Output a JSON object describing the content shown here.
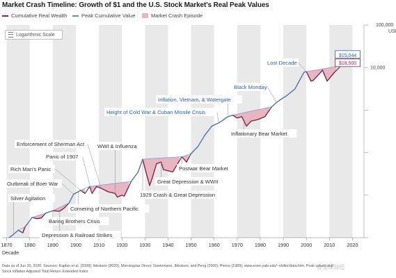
{
  "title": "Market Crash Timeline: Growth of $1 and the U.S. Stock Market's Real Peak Values",
  "legend": {
    "cumulative": "Cumulative Real Wealth",
    "peak": "Peak Cumulative Value",
    "crash": "Market Crash Episode"
  },
  "log_button": "Logarithmic Scale",
  "colors": {
    "wealth": "#2f4f8f",
    "peak": "#5b8fd6",
    "crash_fill": "#e6b6c3",
    "crash_line": "#9b1d3a",
    "decade_band": "#e9e9e9",
    "label_red": "#a41d3d",
    "label_blue": "#2a64b8"
  },
  "footer": {
    "line1": "Data as of Jun 30, 2020. Sources: Kaplan et al. (2009); Ibbotson (2020); Morningstar Direct; Goetzmann, Ibbotson, and Peng (2000); Pierce (1983); www.econ.yale.edu/~shiller/data.htm. Peak values and",
    "line2": "Stock Inflation Adjusted Total Return Extended Index."
  },
  "watermark": "@雪球财经",
  "chart_data": {
    "type": "line",
    "title": "Market Crash Timeline: Growth of $1 and the U.S. Stock Market's Real Peak Values",
    "xlabel": "Decade",
    "ylabel": "USD",
    "y_scale": "log",
    "xlim": [
      1868,
      2025
    ],
    "ylim": [
      1,
      100000
    ],
    "x_ticks": [
      "1870",
      "1880",
      "1890",
      "1900",
      "1910",
      "1920",
      "1930",
      "1940",
      "1950",
      "1960",
      "1970",
      "1980",
      "1990",
      "2000",
      "2010",
      "2020"
    ],
    "y_ticks": [
      "1",
      "10",
      "100",
      "1,000",
      "10,000",
      "100,000 USD"
    ],
    "y_ticks_shown": [
      "10,000",
      "100,000 USD"
    ],
    "grid": false,
    "decade_bands": true,
    "legend_position": "top-left",
    "series": [
      {
        "name": "Cumulative Real Wealth",
        "x": [
          1871,
          1873,
          1875,
          1877,
          1878,
          1880,
          1881,
          1883,
          1885,
          1887,
          1890,
          1893,
          1895,
          1897,
          1899,
          1901,
          1902,
          1904,
          1906,
          1907,
          1909,
          1911,
          1914,
          1917,
          1918,
          1920,
          1921,
          1924,
          1927,
          1929,
          1930,
          1932,
          1933,
          1935,
          1937,
          1938,
          1942,
          1946,
          1948,
          1950,
          1953,
          1956,
          1959,
          1962,
          1966,
          1968,
          1970,
          1972,
          1974,
          1976,
          1979,
          1982,
          1985,
          1987,
          1989,
          1991,
          1995,
          1999,
          2000,
          2002,
          2003,
          2006,
          2007,
          2009,
          2012,
          2015,
          2018,
          2019,
          2020,
          2020.5
        ],
        "values": [
          1,
          1.2,
          1.5,
          1.3,
          1.8,
          2.5,
          3,
          2.8,
          2.9,
          3.8,
          4.3,
          4.2,
          5,
          6.5,
          10.5,
          12,
          13,
          11,
          16,
          11,
          16,
          14.5,
          12,
          11,
          9,
          10,
          9.5,
          21,
          35,
          70,
          42,
          17,
          24,
          55,
          60,
          40,
          35,
          80,
          60,
          95,
          140,
          260,
          420,
          500,
          700,
          760,
          650,
          700,
          420,
          550,
          600,
          700,
          1200,
          1500,
          1800,
          2100,
          3100,
          7800,
          8000,
          4800,
          5000,
          7500,
          8700,
          4800,
          7500,
          11000,
          15044,
          13000,
          13500,
          18500
        ]
      },
      {
        "name": "Peak Cumulative Value",
        "x": [
          1871,
          1873,
          1875,
          1878,
          1880,
          1881,
          1887,
          1890,
          1897,
          1899,
          1901,
          1902,
          1906,
          1924,
          1927,
          1929,
          1946,
          1950,
          1953,
          1956,
          1959,
          1962,
          1966,
          1968,
          1985,
          1987,
          1989,
          1991,
          1995,
          1999,
          2000,
          2015,
          2018,
          2020.5
        ],
        "values": [
          1,
          1.2,
          1.5,
          1.8,
          2.5,
          3,
          3.8,
          4.3,
          6.5,
          10.5,
          12,
          13,
          16,
          21,
          35,
          70,
          80,
          95,
          140,
          260,
          420,
          500,
          700,
          760,
          1200,
          1500,
          1800,
          2100,
          3100,
          7800,
          8000,
          11000,
          15044,
          18500
        ]
      }
    ],
    "crash_episodes": [
      {
        "start": 1877,
        "end": 1879
      },
      {
        "start": 1882,
        "end": 1886
      },
      {
        "start": 1890,
        "end": 1896
      },
      {
        "start": 1902,
        "end": 1904
      },
      {
        "start": 1906,
        "end": 1923
      },
      {
        "start": 1929,
        "end": 1945
      },
      {
        "start": 1946,
        "end": 1949
      },
      {
        "start": 1968,
        "end": 1984
      },
      {
        "start": 2000,
        "end": 2013
      }
    ],
    "value_labels": [
      "$15,044",
      "$18,500"
    ],
    "annotations": [
      {
        "text": "Silver Agitation",
        "x": 1873,
        "color": "red"
      },
      {
        "text": "Outbreak of Boer War",
        "x": 1899,
        "color": "red"
      },
      {
        "text": "Rich Man's Panic",
        "x": 1903,
        "color": "red"
      },
      {
        "text": "Panic of 1907",
        "x": 1907,
        "color": "red"
      },
      {
        "text": "Enforcement of Sherman Act",
        "x": 1911,
        "color": "red"
      },
      {
        "text": "WWI & Influenza",
        "x": 1917,
        "color": "red"
      },
      {
        "text": "Baring Brothers Crisis",
        "x": 1890,
        "color": "red"
      },
      {
        "text": "Depression & Railroad Strikes",
        "x": 1893,
        "color": "red"
      },
      {
        "text": "Cornering of Northern Pacific",
        "x": 1901,
        "color": "red"
      },
      {
        "text": "1929 Crash & Great Depression",
        "x": 1929,
        "color": "red"
      },
      {
        "text": "Great Depression & WWII",
        "x": 1937,
        "color": "red"
      },
      {
        "text": "Postwar Bear Market",
        "x": 1946,
        "color": "red"
      },
      {
        "text": "Height of Cold War & Cuban Missile Crisis",
        "x": 1962,
        "color": "blue"
      },
      {
        "text": "Inflation, Vietnam, & Watergate",
        "x": 1966,
        "color": "blue"
      },
      {
        "text": "Inflationary Bear Market",
        "x": 1973,
        "color": "red"
      },
      {
        "text": "Black Monday",
        "x": 1987,
        "color": "blue"
      },
      {
        "text": "Lost Decade",
        "x": 2000,
        "color": "blue"
      }
    ]
  }
}
